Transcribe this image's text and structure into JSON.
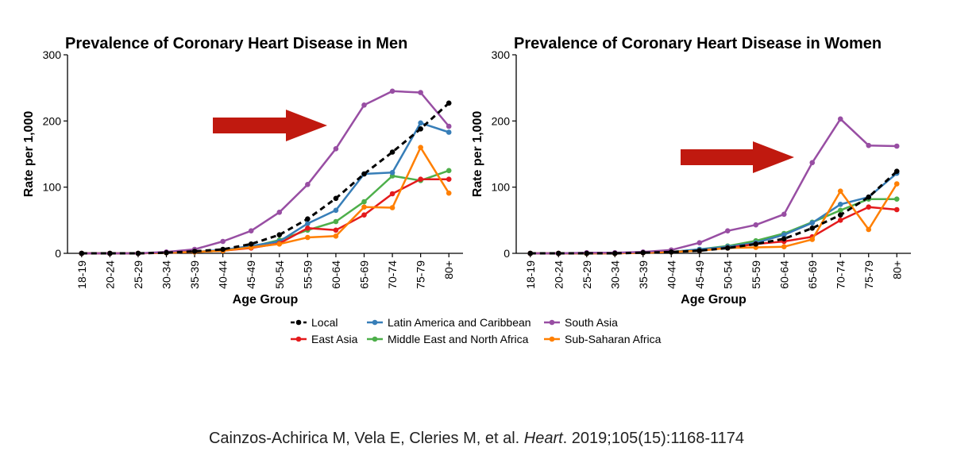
{
  "chart_data": [
    {
      "type": "line",
      "title": "Prevalence of Coronary Heart Disease in Men",
      "xlabel": "Age Group",
      "ylabel": "Rate per 1,000",
      "ylim": [
        0,
        300
      ],
      "yticks": [
        0,
        100,
        200,
        300
      ],
      "categories": [
        "18-19",
        "20-24",
        "25-29",
        "30-34",
        "35-39",
        "40-44",
        "45-49",
        "50-54",
        "55-59",
        "60-64",
        "65-69",
        "70-74",
        "75-79",
        "80+"
      ],
      "series": [
        {
          "name": "Local",
          "values": [
            0,
            0,
            0,
            1,
            3,
            6,
            14,
            28,
            52,
            83,
            120,
            153,
            188,
            227
          ]
        },
        {
          "name": "East Asia",
          "values": [
            0,
            0,
            0,
            1,
            2,
            4,
            8,
            15,
            38,
            35,
            58,
            90,
            112,
            112
          ]
        },
        {
          "name": "Latin America and Caribbean",
          "values": [
            0,
            0,
            0,
            1,
            2,
            5,
            11,
            18,
            45,
            65,
            120,
            122,
            197,
            183
          ]
        },
        {
          "name": "Middle East and North Africa",
          "values": [
            0,
            0,
            0,
            1,
            2,
            4,
            10,
            20,
            35,
            48,
            78,
            117,
            110,
            125
          ]
        },
        {
          "name": "South Asia",
          "values": [
            0,
            0,
            0,
            2,
            6,
            18,
            34,
            62,
            104,
            158,
            224,
            245,
            243,
            192
          ]
        },
        {
          "name": "Sub-Saharan Africa",
          "values": [
            0,
            0,
            0,
            1,
            2,
            4,
            9,
            14,
            24,
            26,
            70,
            69,
            160,
            91
          ]
        }
      ]
    },
    {
      "type": "line",
      "title": "Prevalence of Coronary Heart Disease in Women",
      "xlabel": "Age Group",
      "ylabel": "Rate per 1,000",
      "ylim": [
        0,
        300
      ],
      "yticks": [
        0,
        100,
        200,
        300
      ],
      "categories": [
        "18-19",
        "20-24",
        "25-29",
        "30-34",
        "35-39",
        "40-44",
        "45-49",
        "50-54",
        "55-59",
        "60-64",
        "65-69",
        "70-74",
        "75-79",
        "80+"
      ],
      "series": [
        {
          "name": "Local",
          "values": [
            0,
            0,
            0,
            0,
            1,
            2,
            4,
            8,
            14,
            22,
            38,
            58,
            85,
            124
          ]
        },
        {
          "name": "East Asia",
          "values": [
            0,
            0,
            0,
            0,
            1,
            2,
            4,
            8,
            14,
            18,
            25,
            50,
            70,
            66
          ]
        },
        {
          "name": "Latin America and Caribbean",
          "values": [
            0,
            0,
            0,
            0,
            1,
            2,
            6,
            10,
            16,
            28,
            46,
            74,
            85,
            121
          ]
        },
        {
          "name": "Middle East and North Africa",
          "values": [
            0,
            0,
            0,
            0,
            1,
            2,
            6,
            11,
            19,
            30,
            47,
            65,
            82,
            82
          ]
        },
        {
          "name": "South Asia",
          "values": [
            0,
            0,
            1,
            1,
            2,
            5,
            16,
            34,
            43,
            59,
            137,
            203,
            163,
            162
          ]
        },
        {
          "name": "Sub-Saharan Africa",
          "values": [
            0,
            0,
            0,
            0,
            1,
            2,
            4,
            8,
            9,
            10,
            21,
            94,
            36,
            105
          ]
        }
      ]
    }
  ],
  "legend": {
    "entries": [
      {
        "label": "Local",
        "style": "dashed"
      },
      {
        "label": "Latin America and Caribbean",
        "style": "solid"
      },
      {
        "label": "South Asia",
        "style": "solid"
      },
      {
        "label": "East Asia",
        "style": "solid"
      },
      {
        "label": "Middle East and North Africa",
        "style": "solid"
      },
      {
        "label": "Sub-Saharan Africa",
        "style": "solid"
      }
    ]
  },
  "colors": {
    "Local": "#000000",
    "East Asia": "#e41a1c",
    "Latin America and Caribbean": "#377eb8",
    "Middle East and North Africa": "#4daf4a",
    "South Asia": "#984ea3",
    "Sub-Saharan Africa": "#ff7f00",
    "arrow": "#c0190f"
  },
  "citation": {
    "authors": "Cainzos-Achirica M, Vela E, Cleries M, et al. ",
    "journal": "Heart",
    "details": ". 2019;105(15):1168-1174"
  }
}
